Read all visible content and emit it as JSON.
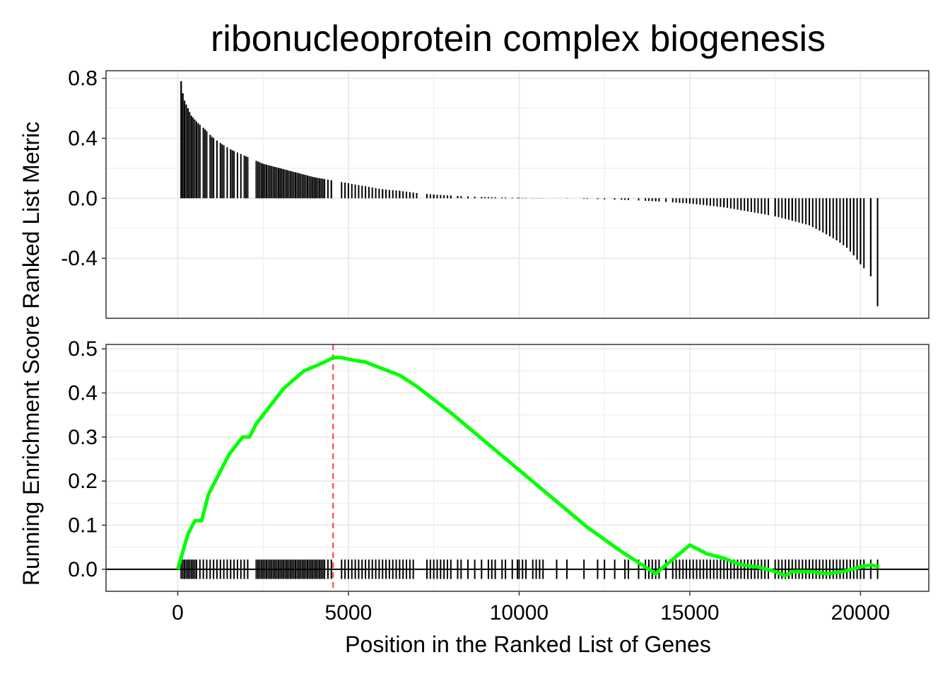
{
  "chart_data": {
    "type": "line",
    "title": "ribonucleoprotein complex biogenesis",
    "xlabel": "Position in the Ranked List of Genes",
    "ylabel": "Running Enrichment Score Ranked List Metric",
    "xlim": [
      -2100,
      22000
    ],
    "x_ticks": [
      "0",
      "5000",
      "10000",
      "15000",
      "20000"
    ],
    "x_tick_values": [
      0,
      5000,
      10000,
      15000,
      20000
    ],
    "grid": true,
    "colors": {
      "es_line": "#00ff00",
      "peak_line": "#ff5a5f",
      "bars": "#000000",
      "grid": "#ebebeb"
    },
    "panels": [
      {
        "name": "Ranked List Metric",
        "ylim": [
          -0.8,
          0.85
        ],
        "y_ticks": [
          "0.8",
          "0.4",
          "0.0",
          "-0.4"
        ],
        "y_tick_values": [
          0.8,
          0.4,
          0.0,
          -0.4
        ],
        "metric_points": [
          [
            100,
            0.78
          ],
          [
            150,
            0.7
          ],
          [
            200,
            0.65
          ],
          [
            300,
            0.6
          ],
          [
            400,
            0.55
          ],
          [
            600,
            0.5
          ],
          [
            800,
            0.46
          ],
          [
            1000,
            0.41
          ],
          [
            1300,
            0.36
          ],
          [
            1600,
            0.32
          ],
          [
            2000,
            0.28
          ],
          [
            2500,
            0.23
          ],
          [
            3000,
            0.2
          ],
          [
            3500,
            0.17
          ],
          [
            4000,
            0.14
          ],
          [
            4500,
            0.12
          ],
          [
            5000,
            0.1
          ],
          [
            5500,
            0.08
          ],
          [
            6000,
            0.06
          ],
          [
            6500,
            0.05
          ],
          [
            7000,
            0.035
          ],
          [
            7500,
            0.025
          ],
          [
            8000,
            0.018
          ],
          [
            8500,
            0.012
          ],
          [
            9000,
            0.008
          ],
          [
            10000,
            0.003
          ],
          [
            11000,
            0.0
          ],
          [
            12000,
            -0.004
          ],
          [
            13000,
            -0.01
          ],
          [
            14000,
            -0.02
          ],
          [
            15000,
            -0.035
          ],
          [
            16000,
            -0.06
          ],
          [
            16500,
            -0.08
          ],
          [
            17000,
            -0.1
          ],
          [
            17500,
            -0.12
          ],
          [
            18000,
            -0.15
          ],
          [
            18500,
            -0.18
          ],
          [
            19000,
            -0.24
          ],
          [
            19300,
            -0.28
          ],
          [
            19600,
            -0.33
          ],
          [
            19800,
            -0.38
          ],
          [
            20000,
            -0.44
          ],
          [
            20300,
            -0.52
          ],
          [
            20500,
            -0.72
          ]
        ]
      },
      {
        "name": "Running Enrichment Score",
        "ylim": [
          -0.05,
          0.51
        ],
        "y_ticks": [
          "0.5",
          "0.4",
          "0.3",
          "0.2",
          "0.1",
          "0.0"
        ],
        "y_tick_values": [
          0.5,
          0.4,
          0.3,
          0.2,
          0.1,
          0.0
        ],
        "peak_x": 4550,
        "series": [
          {
            "x": [
              0,
              150,
              300,
              500,
              700,
              900,
              1100,
              1300,
              1500,
              1700,
              1900,
              2100,
              2300,
              2500,
              2800,
              3100,
              3400,
              3700,
              4000,
              4300,
              4550,
              4800,
              5100,
              5500,
              6000,
              6500,
              7000,
              7500,
              8000,
              9000,
              10000,
              11000,
              12000,
              13000,
              14000,
              15000,
              15500,
              16000,
              16500,
              17000,
              17500,
              17800,
              18000,
              18500,
              19000,
              19500,
              20000,
              20300,
              20550
            ],
            "y": [
              0.0,
              0.04,
              0.08,
              0.11,
              0.11,
              0.17,
              0.2,
              0.23,
              0.26,
              0.28,
              0.3,
              0.3,
              0.33,
              0.35,
              0.38,
              0.41,
              0.43,
              0.45,
              0.46,
              0.47,
              0.48,
              0.48,
              0.475,
              0.47,
              0.455,
              0.44,
              0.415,
              0.385,
              0.355,
              0.29,
              0.225,
              0.16,
              0.095,
              0.04,
              -0.01,
              0.055,
              0.035,
              0.025,
              0.01,
              0.005,
              -0.005,
              -0.015,
              -0.005,
              -0.005,
              -0.01,
              -0.005,
              0.005,
              0.01,
              0.005
            ]
          }
        ],
        "hit_positions": [
          100,
          150,
          200,
          250,
          300,
          350,
          400,
          450,
          500,
          550,
          650,
          750,
          850,
          950,
          1050,
          1150,
          1250,
          1350,
          1450,
          1550,
          1650,
          1750,
          1850,
          1950,
          2050,
          2300,
          2350,
          2400,
          2450,
          2500,
          2550,
          2600,
          2650,
          2700,
          2750,
          2800,
          2850,
          2900,
          2950,
          3000,
          3050,
          3100,
          3150,
          3200,
          3250,
          3300,
          3350,
          3400,
          3450,
          3500,
          3550,
          3600,
          3650,
          3700,
          3750,
          3800,
          3850,
          3900,
          3950,
          4000,
          4050,
          4100,
          4150,
          4200,
          4250,
          4300,
          4400,
          4500,
          4800,
          4900,
          5000,
          5100,
          5200,
          5300,
          5400,
          5500,
          5600,
          5700,
          5800,
          5900,
          6000,
          6100,
          6200,
          6300,
          6400,
          6500,
          6600,
          6700,
          6800,
          6900,
          7300,
          7400,
          7500,
          7600,
          7700,
          7800,
          7900,
          8000,
          8200,
          8300,
          8500,
          8700,
          8900,
          9100,
          9200,
          9300,
          9500,
          9600,
          9800,
          9950,
          10000,
          10100,
          10200,
          10400,
          10500,
          10600,
          10700,
          11100,
          11400,
          11900,
          12300,
          12500,
          12800,
          13100,
          13200,
          13500,
          13700,
          13800,
          13900,
          14000,
          14100,
          14300,
          14500,
          14600,
          14700,
          14800,
          14900,
          15000,
          15100,
          15200,
          15300,
          15400,
          15500,
          15600,
          15700,
          15800,
          15900,
          16000,
          16100,
          16200,
          16300,
          16400,
          16500,
          16600,
          16700,
          16800,
          16900,
          17000,
          17100,
          17200,
          17300,
          17500,
          17600,
          17700,
          17800,
          17900,
          18000,
          18100,
          18200,
          18300,
          18400,
          18500,
          18600,
          18700,
          18800,
          18900,
          19000,
          19100,
          19200,
          19300,
          19400,
          19500,
          19600,
          19700,
          19800,
          19900,
          20000,
          20100,
          20300,
          20500
        ]
      }
    ]
  }
}
